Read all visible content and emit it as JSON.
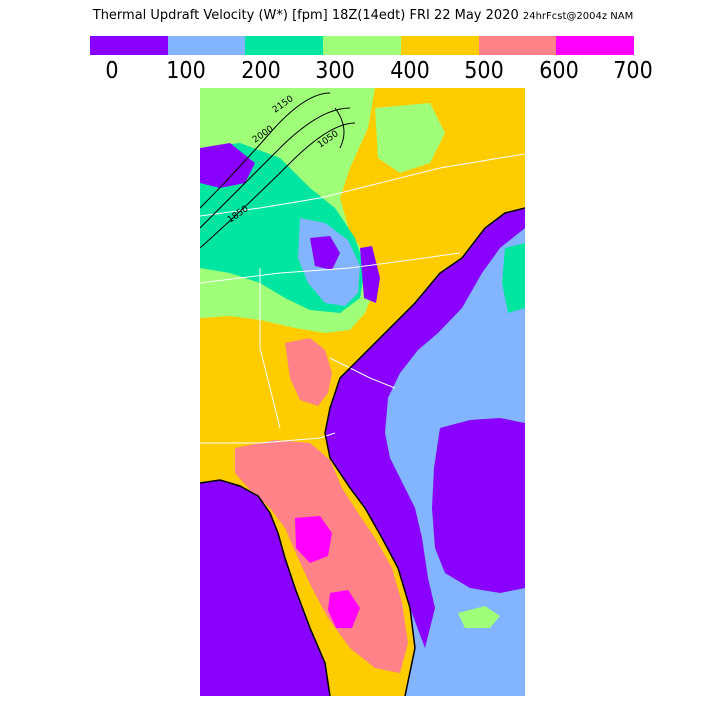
{
  "header": {
    "title_main": "Thermal Updraft Velocity (W*) [fpm] 18Z(14edt) FRI 22 May 2020",
    "title_small": "24hrFcst@2004z NAM"
  },
  "legend": {
    "ticks": [
      "0",
      "100",
      "200",
      "300",
      "400",
      "500",
      "600",
      "700"
    ],
    "colors": [
      "#8a00ff",
      "#82b4ff",
      "#00e6a0",
      "#a0ff78",
      "#ffcc00",
      "#ff8289",
      "#ff00ff"
    ]
  },
  "map": {
    "contour_labels": [
      "2150",
      "2000",
      "1850",
      "1050"
    ],
    "colors": {
      "ocean": "#82b4ff",
      "calm": "#8a00ff",
      "c100": "#82b4ff",
      "c200": "#00e6a0",
      "c300": "#a0ff78",
      "c400": "#ffcc00",
      "c500": "#ff8289",
      "c600": "#ff00ff",
      "border": "#ffffff",
      "coast": "#000000"
    }
  }
}
